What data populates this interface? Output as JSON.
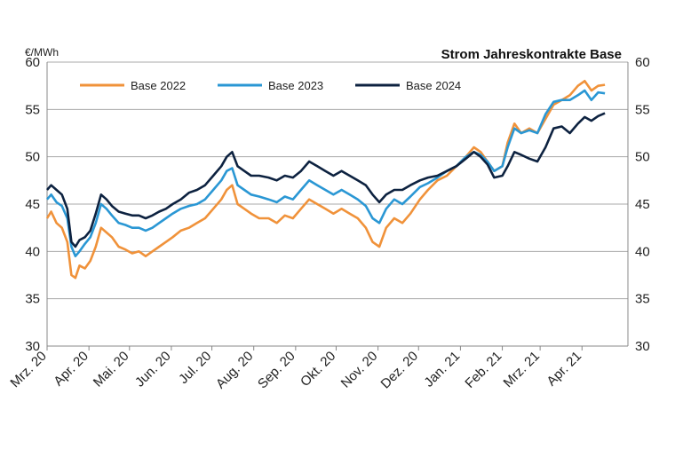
{
  "chart_data": {
    "type": "line",
    "title": "Strom Jahreskontrakte Base",
    "unit_label": "€/MWh",
    "ylim": [
      30,
      60
    ],
    "y_ticks": [
      30,
      35,
      40,
      45,
      50,
      55,
      60
    ],
    "x_range": [
      "2020-03-01",
      "2021-05-05"
    ],
    "x_ticks": [
      {
        "date": "2020-03-01",
        "label": "Mrz. 20"
      },
      {
        "date": "2020-04-01",
        "label": "Apr. 20"
      },
      {
        "date": "2020-05-01",
        "label": "Mai. 20"
      },
      {
        "date": "2020-06-01",
        "label": "Jun. 20"
      },
      {
        "date": "2020-07-01",
        "label": "Jul. 20"
      },
      {
        "date": "2020-08-01",
        "label": "Aug. 20"
      },
      {
        "date": "2020-09-01",
        "label": "Sep. 20"
      },
      {
        "date": "2020-10-01",
        "label": "Okt. 20"
      },
      {
        "date": "2020-11-01",
        "label": "Nov. 20"
      },
      {
        "date": "2020-12-01",
        "label": "Dez. 20"
      },
      {
        "date": "2021-01-01",
        "label": "Jan. 21"
      },
      {
        "date": "2021-02-01",
        "label": "Feb. 21"
      },
      {
        "date": "2021-03-01",
        "label": "Mrz. 21"
      },
      {
        "date": "2021-04-01",
        "label": "Apr. 21"
      }
    ],
    "grid": "horizontal",
    "legend_position": "top-left",
    "series": [
      {
        "name": "Base 2022",
        "color": "#f0923a",
        "points": [
          [
            "2020-03-01",
            43.5
          ],
          [
            "2020-03-04",
            44.2
          ],
          [
            "2020-03-08",
            43.0
          ],
          [
            "2020-03-12",
            42.5
          ],
          [
            "2020-03-16",
            41.0
          ],
          [
            "2020-03-19",
            37.5
          ],
          [
            "2020-03-22",
            37.2
          ],
          [
            "2020-03-25",
            38.5
          ],
          [
            "2020-03-29",
            38.2
          ],
          [
            "2020-04-02",
            39.0
          ],
          [
            "2020-04-06",
            40.5
          ],
          [
            "2020-04-10",
            42.5
          ],
          [
            "2020-04-14",
            42.0
          ],
          [
            "2020-04-18",
            41.5
          ],
          [
            "2020-04-23",
            40.5
          ],
          [
            "2020-04-28",
            40.2
          ],
          [
            "2020-05-03",
            39.8
          ],
          [
            "2020-05-08",
            40.0
          ],
          [
            "2020-05-13",
            39.5
          ],
          [
            "2020-05-18",
            40.0
          ],
          [
            "2020-05-23",
            40.5
          ],
          [
            "2020-05-28",
            41.0
          ],
          [
            "2020-06-02",
            41.5
          ],
          [
            "2020-06-08",
            42.2
          ],
          [
            "2020-06-14",
            42.5
          ],
          [
            "2020-06-20",
            43.0
          ],
          [
            "2020-06-26",
            43.5
          ],
          [
            "2020-07-02",
            44.5
          ],
          [
            "2020-07-08",
            45.5
          ],
          [
            "2020-07-12",
            46.5
          ],
          [
            "2020-07-16",
            47.0
          ],
          [
            "2020-07-20",
            45.0
          ],
          [
            "2020-07-25",
            44.5
          ],
          [
            "2020-07-30",
            44.0
          ],
          [
            "2020-08-05",
            43.5
          ],
          [
            "2020-08-12",
            43.5
          ],
          [
            "2020-08-18",
            43.0
          ],
          [
            "2020-08-24",
            43.8
          ],
          [
            "2020-08-30",
            43.5
          ],
          [
            "2020-09-05",
            44.5
          ],
          [
            "2020-09-11",
            45.5
          ],
          [
            "2020-09-17",
            45.0
          ],
          [
            "2020-09-23",
            44.5
          ],
          [
            "2020-09-29",
            44.0
          ],
          [
            "2020-10-05",
            44.5
          ],
          [
            "2020-10-11",
            44.0
          ],
          [
            "2020-10-17",
            43.5
          ],
          [
            "2020-10-23",
            42.5
          ],
          [
            "2020-10-28",
            41.0
          ],
          [
            "2020-11-02",
            40.5
          ],
          [
            "2020-11-07",
            42.5
          ],
          [
            "2020-11-13",
            43.5
          ],
          [
            "2020-11-19",
            43.0
          ],
          [
            "2020-11-25",
            44.0
          ],
          [
            "2020-12-02",
            45.5
          ],
          [
            "2020-12-08",
            46.5
          ],
          [
            "2020-12-15",
            47.5
          ],
          [
            "2020-12-22",
            48.0
          ],
          [
            "2020-12-29",
            49.0
          ],
          [
            "2021-01-05",
            50.0
          ],
          [
            "2021-01-11",
            51.0
          ],
          [
            "2021-01-16",
            50.5
          ],
          [
            "2021-01-21",
            49.5
          ],
          [
            "2021-01-26",
            48.5
          ],
          [
            "2021-02-01",
            49.0
          ],
          [
            "2021-02-05",
            51.5
          ],
          [
            "2021-02-10",
            53.5
          ],
          [
            "2021-02-15",
            52.5
          ],
          [
            "2021-02-21",
            53.0
          ],
          [
            "2021-02-27",
            52.5
          ],
          [
            "2021-03-05",
            54.0
          ],
          [
            "2021-03-11",
            55.5
          ],
          [
            "2021-03-17",
            56.0
          ],
          [
            "2021-03-23",
            56.5
          ],
          [
            "2021-03-29",
            57.5
          ],
          [
            "2021-04-03",
            58.0
          ],
          [
            "2021-04-08",
            57.0
          ],
          [
            "2021-04-13",
            57.5
          ],
          [
            "2021-04-18",
            57.6
          ]
        ]
      },
      {
        "name": "Base 2023",
        "color": "#2a97d4",
        "points": [
          [
            "2020-03-01",
            45.5
          ],
          [
            "2020-03-04",
            46.0
          ],
          [
            "2020-03-08",
            45.2
          ],
          [
            "2020-03-12",
            44.8
          ],
          [
            "2020-03-16",
            43.5
          ],
          [
            "2020-03-19",
            40.5
          ],
          [
            "2020-03-22",
            39.5
          ],
          [
            "2020-03-25",
            40.0
          ],
          [
            "2020-03-29",
            40.8
          ],
          [
            "2020-04-02",
            41.5
          ],
          [
            "2020-04-06",
            43.0
          ],
          [
            "2020-04-10",
            45.0
          ],
          [
            "2020-04-14",
            44.5
          ],
          [
            "2020-04-18",
            43.8
          ],
          [
            "2020-04-23",
            43.0
          ],
          [
            "2020-04-28",
            42.8
          ],
          [
            "2020-05-03",
            42.5
          ],
          [
            "2020-05-08",
            42.5
          ],
          [
            "2020-05-13",
            42.2
          ],
          [
            "2020-05-18",
            42.5
          ],
          [
            "2020-05-23",
            43.0
          ],
          [
            "2020-05-28",
            43.5
          ],
          [
            "2020-06-02",
            44.0
          ],
          [
            "2020-06-08",
            44.5
          ],
          [
            "2020-06-14",
            44.8
          ],
          [
            "2020-06-20",
            45.0
          ],
          [
            "2020-06-26",
            45.5
          ],
          [
            "2020-07-02",
            46.5
          ],
          [
            "2020-07-08",
            47.5
          ],
          [
            "2020-07-12",
            48.5
          ],
          [
            "2020-07-16",
            48.8
          ],
          [
            "2020-07-20",
            47.0
          ],
          [
            "2020-07-25",
            46.5
          ],
          [
            "2020-07-30",
            46.0
          ],
          [
            "2020-08-05",
            45.8
          ],
          [
            "2020-08-12",
            45.5
          ],
          [
            "2020-08-18",
            45.2
          ],
          [
            "2020-08-24",
            45.8
          ],
          [
            "2020-08-30",
            45.5
          ],
          [
            "2020-09-05",
            46.5
          ],
          [
            "2020-09-11",
            47.5
          ],
          [
            "2020-09-17",
            47.0
          ],
          [
            "2020-09-23",
            46.5
          ],
          [
            "2020-09-29",
            46.0
          ],
          [
            "2020-10-05",
            46.5
          ],
          [
            "2020-10-11",
            46.0
          ],
          [
            "2020-10-17",
            45.5
          ],
          [
            "2020-10-23",
            44.8
          ],
          [
            "2020-10-28",
            43.5
          ],
          [
            "2020-11-02",
            43.0
          ],
          [
            "2020-11-07",
            44.5
          ],
          [
            "2020-11-13",
            45.5
          ],
          [
            "2020-11-19",
            45.0
          ],
          [
            "2020-11-25",
            45.8
          ],
          [
            "2020-12-02",
            46.8
          ],
          [
            "2020-12-08",
            47.2
          ],
          [
            "2020-12-15",
            47.8
          ],
          [
            "2020-12-22",
            48.5
          ],
          [
            "2020-12-29",
            49.0
          ],
          [
            "2021-01-05",
            50.0
          ],
          [
            "2021-01-11",
            50.5
          ],
          [
            "2021-01-16",
            50.2
          ],
          [
            "2021-01-21",
            49.5
          ],
          [
            "2021-01-26",
            48.5
          ],
          [
            "2021-02-01",
            49.0
          ],
          [
            "2021-02-05",
            51.0
          ],
          [
            "2021-02-10",
            53.0
          ],
          [
            "2021-02-15",
            52.5
          ],
          [
            "2021-02-21",
            52.8
          ],
          [
            "2021-02-27",
            52.5
          ],
          [
            "2021-03-05",
            54.5
          ],
          [
            "2021-03-11",
            55.8
          ],
          [
            "2021-03-17",
            56.0
          ],
          [
            "2021-03-23",
            56.0
          ],
          [
            "2021-03-29",
            56.5
          ],
          [
            "2021-04-03",
            57.0
          ],
          [
            "2021-04-08",
            56.0
          ],
          [
            "2021-04-13",
            56.8
          ],
          [
            "2021-04-18",
            56.7
          ]
        ]
      },
      {
        "name": "Base 2024",
        "color": "#0d2240",
        "points": [
          [
            "2020-03-01",
            46.5
          ],
          [
            "2020-03-04",
            47.0
          ],
          [
            "2020-03-08",
            46.5
          ],
          [
            "2020-03-12",
            46.0
          ],
          [
            "2020-03-16",
            44.5
          ],
          [
            "2020-03-19",
            41.0
          ],
          [
            "2020-03-22",
            40.5
          ],
          [
            "2020-03-25",
            41.2
          ],
          [
            "2020-03-29",
            41.5
          ],
          [
            "2020-04-02",
            42.2
          ],
          [
            "2020-04-06",
            44.0
          ],
          [
            "2020-04-10",
            46.0
          ],
          [
            "2020-04-14",
            45.5
          ],
          [
            "2020-04-18",
            44.8
          ],
          [
            "2020-04-23",
            44.2
          ],
          [
            "2020-04-28",
            44.0
          ],
          [
            "2020-05-03",
            43.8
          ],
          [
            "2020-05-08",
            43.8
          ],
          [
            "2020-05-13",
            43.5
          ],
          [
            "2020-05-18",
            43.8
          ],
          [
            "2020-05-23",
            44.2
          ],
          [
            "2020-05-28",
            44.5
          ],
          [
            "2020-06-02",
            45.0
          ],
          [
            "2020-06-08",
            45.5
          ],
          [
            "2020-06-14",
            46.2
          ],
          [
            "2020-06-20",
            46.5
          ],
          [
            "2020-06-26",
            47.0
          ],
          [
            "2020-07-02",
            48.0
          ],
          [
            "2020-07-08",
            49.0
          ],
          [
            "2020-07-12",
            50.0
          ],
          [
            "2020-07-16",
            50.5
          ],
          [
            "2020-07-20",
            49.0
          ],
          [
            "2020-07-25",
            48.5
          ],
          [
            "2020-07-30",
            48.0
          ],
          [
            "2020-08-05",
            48.0
          ],
          [
            "2020-08-12",
            47.8
          ],
          [
            "2020-08-18",
            47.5
          ],
          [
            "2020-08-24",
            48.0
          ],
          [
            "2020-08-30",
            47.8
          ],
          [
            "2020-09-05",
            48.5
          ],
          [
            "2020-09-11",
            49.5
          ],
          [
            "2020-09-17",
            49.0
          ],
          [
            "2020-09-23",
            48.5
          ],
          [
            "2020-09-29",
            48.0
          ],
          [
            "2020-10-05",
            48.5
          ],
          [
            "2020-10-11",
            48.0
          ],
          [
            "2020-10-17",
            47.5
          ],
          [
            "2020-10-23",
            47.0
          ],
          [
            "2020-10-28",
            46.0
          ],
          [
            "2020-11-02",
            45.2
          ],
          [
            "2020-11-07",
            46.0
          ],
          [
            "2020-11-13",
            46.5
          ],
          [
            "2020-11-19",
            46.5
          ],
          [
            "2020-11-25",
            47.0
          ],
          [
            "2020-12-02",
            47.5
          ],
          [
            "2020-12-08",
            47.8
          ],
          [
            "2020-12-15",
            48.0
          ],
          [
            "2020-12-22",
            48.5
          ],
          [
            "2020-12-29",
            49.0
          ],
          [
            "2021-01-05",
            49.8
          ],
          [
            "2021-01-11",
            50.5
          ],
          [
            "2021-01-16",
            50.0
          ],
          [
            "2021-01-21",
            49.2
          ],
          [
            "2021-01-26",
            47.8
          ],
          [
            "2021-02-01",
            48.0
          ],
          [
            "2021-02-05",
            49.0
          ],
          [
            "2021-02-10",
            50.5
          ],
          [
            "2021-02-15",
            50.2
          ],
          [
            "2021-02-21",
            49.8
          ],
          [
            "2021-02-27",
            49.5
          ],
          [
            "2021-03-05",
            51.0
          ],
          [
            "2021-03-11",
            53.0
          ],
          [
            "2021-03-17",
            53.2
          ],
          [
            "2021-03-23",
            52.5
          ],
          [
            "2021-03-29",
            53.5
          ],
          [
            "2021-04-03",
            54.2
          ],
          [
            "2021-04-08",
            53.8
          ],
          [
            "2021-04-13",
            54.3
          ],
          [
            "2021-04-18",
            54.6
          ]
        ]
      }
    ]
  }
}
